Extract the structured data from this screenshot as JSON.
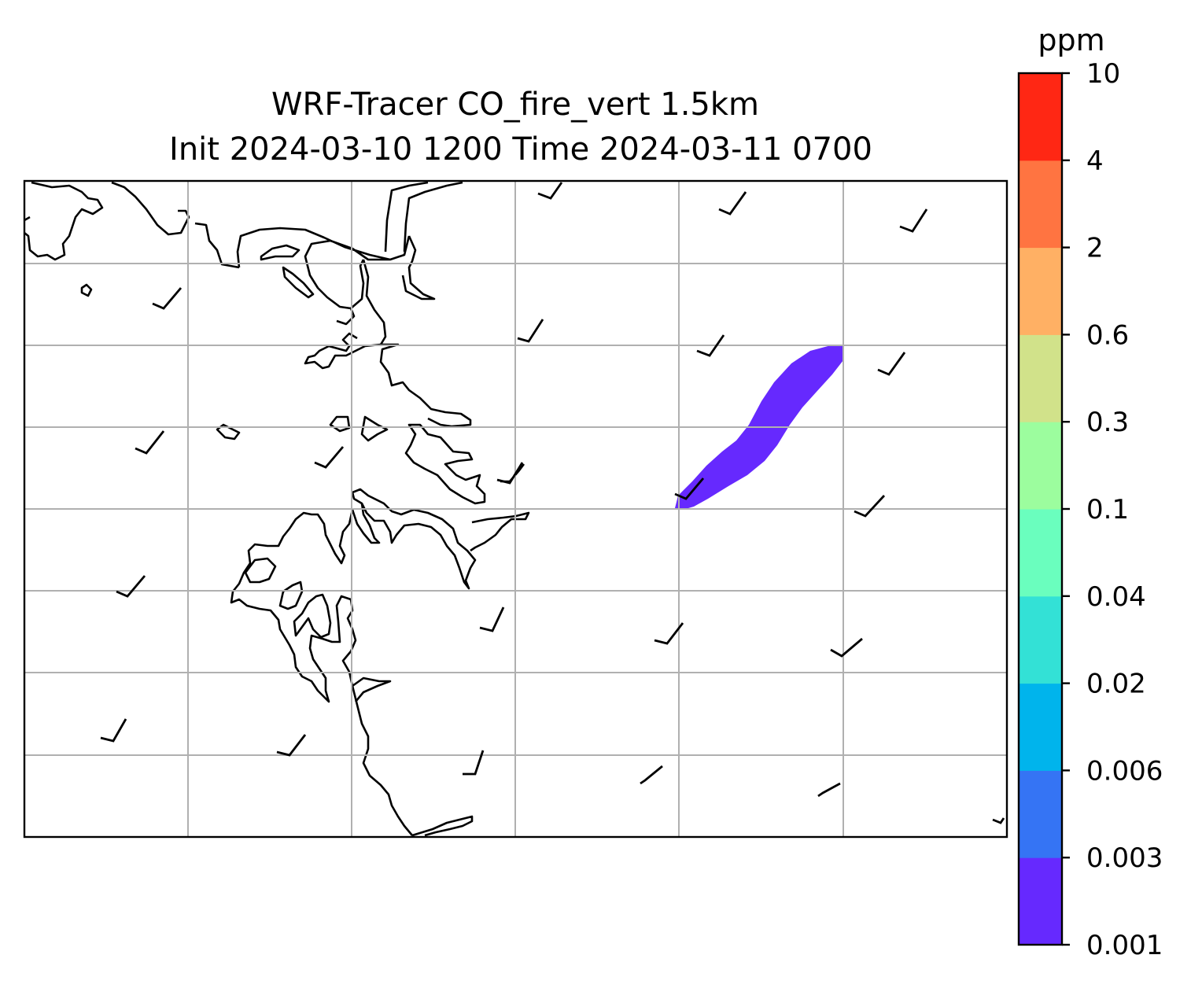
{
  "title": {
    "line1": "WRF-Tracer CO_fire_vert 1.5km",
    "line2": "Init 2024-03-10 1200 Time 2024-03-11 0700"
  },
  "colorbar": {
    "unit": "ppm",
    "levels": [
      "0.001",
      "0.003",
      "0.006",
      "0.02",
      "0.04",
      "0.1",
      "0.3",
      "0.6",
      "2",
      "4",
      "10"
    ],
    "colors": [
      "#6629fe",
      "#3574f4",
      "#00b4ec",
      "#33e1d6",
      "#6afebe",
      "#9cfd9e",
      "#d1e28a",
      "#ffb064",
      "#ff7441",
      "#ff2714"
    ]
  },
  "plume": {
    "color": "#6629fe",
    "level": "0.001"
  },
  "map": {
    "coastline_color": "#000000",
    "grid_color": "#b0b0b0",
    "barb_color": "#000000"
  }
}
